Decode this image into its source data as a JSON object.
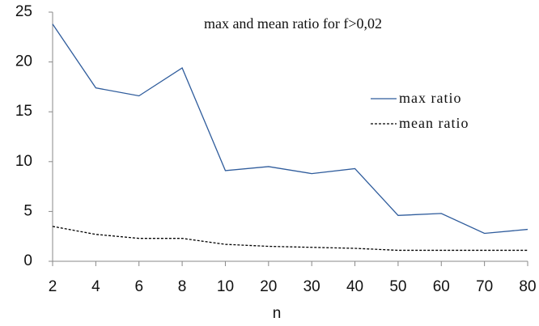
{
  "chart_data": {
    "type": "line",
    "title": "max and mean ratio for f>0,02",
    "x_label": "n",
    "categories": [
      "2",
      "4",
      "6",
      "8",
      "10",
      "20",
      "30",
      "40",
      "50",
      "60",
      "70",
      "80"
    ],
    "series": [
      {
        "name": "max ratio",
        "color": "#2f5c9c",
        "style": "solid",
        "values": [
          23.8,
          17.4,
          16.6,
          19.4,
          9.1,
          9.5,
          8.8,
          9.3,
          4.6,
          4.8,
          2.8,
          3.2
        ]
      },
      {
        "name": "mean ratio",
        "color": "#000000",
        "style": "dashed",
        "values": [
          3.5,
          2.7,
          2.3,
          2.3,
          1.7,
          1.5,
          1.4,
          1.3,
          1.1,
          1.1,
          1.1,
          1.1
        ]
      }
    ],
    "ylim": [
      0,
      25
    ],
    "yticks": [
      0,
      5,
      10,
      15,
      20,
      25
    ],
    "grid": false,
    "legend": "right"
  }
}
